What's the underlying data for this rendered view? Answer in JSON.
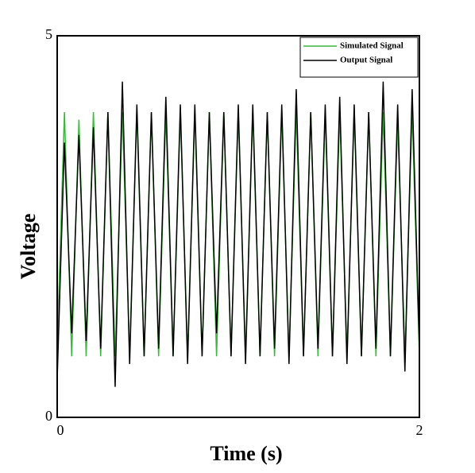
{
  "chart_data": {
    "type": "line",
    "xlabel": "Time (s)",
    "ylabel": "Voltage",
    "x": [
      0,
      0.04,
      0.08,
      0.12,
      0.16,
      0.2,
      0.24,
      0.28,
      0.32,
      0.36,
      0.4,
      0.44,
      0.48,
      0.52,
      0.56,
      0.6,
      0.64,
      0.68,
      0.72,
      0.76,
      0.8,
      0.84,
      0.88,
      0.92,
      0.96,
      1.0,
      1.04,
      1.08,
      1.12,
      1.16,
      1.2,
      1.24,
      1.28,
      1.32,
      1.36,
      1.4,
      1.44,
      1.48,
      1.52,
      1.56,
      1.6,
      1.64,
      1.68,
      1.72,
      1.76,
      1.8,
      1.84,
      1.88,
      1.92,
      1.96,
      2.0
    ],
    "series": [
      {
        "name": "Simulated Signal",
        "color": "#3cb93c",
        "values": [
          0.9,
          4.0,
          0.8,
          3.9,
          0.8,
          4.0,
          0.8,
          4.0,
          0.8,
          4.0,
          0.8,
          4.0,
          0.8,
          4.0,
          0.8,
          4.0,
          0.8,
          4.0,
          0.8,
          4.0,
          0.8,
          4.0,
          0.8,
          4.0,
          0.8,
          4.0,
          0.8,
          4.0,
          0.8,
          4.0,
          0.8,
          4.0,
          0.8,
          4.0,
          0.8,
          4.0,
          0.8,
          4.0,
          0.8,
          4.0,
          0.8,
          4.0,
          0.8,
          4.0,
          0.8,
          4.0,
          0.8,
          3.9,
          0.8,
          4.0,
          0.8
        ]
      },
      {
        "name": "Output Signal",
        "color": "#000000",
        "values": [
          0.5,
          3.6,
          1.1,
          3.7,
          1.0,
          3.8,
          0.9,
          4.0,
          0.4,
          4.4,
          0.7,
          4.1,
          0.8,
          4.0,
          0.9,
          4.2,
          0.8,
          4.1,
          0.7,
          4.1,
          0.8,
          4.0,
          1.1,
          4.0,
          0.8,
          4.1,
          0.7,
          4.1,
          0.8,
          4.0,
          0.9,
          4.1,
          0.7,
          4.3,
          0.8,
          4.0,
          0.9,
          4.1,
          0.8,
          4.2,
          0.7,
          4.1,
          0.8,
          4.0,
          0.9,
          4.4,
          0.8,
          4.1,
          0.6,
          4.3,
          0.9
        ]
      }
    ],
    "xlim": [
      0,
      2
    ],
    "xticks": [
      0,
      2
    ],
    "ylim": [
      0,
      5
    ],
    "yticks": [
      0,
      5
    ],
    "legend": "upper right"
  }
}
